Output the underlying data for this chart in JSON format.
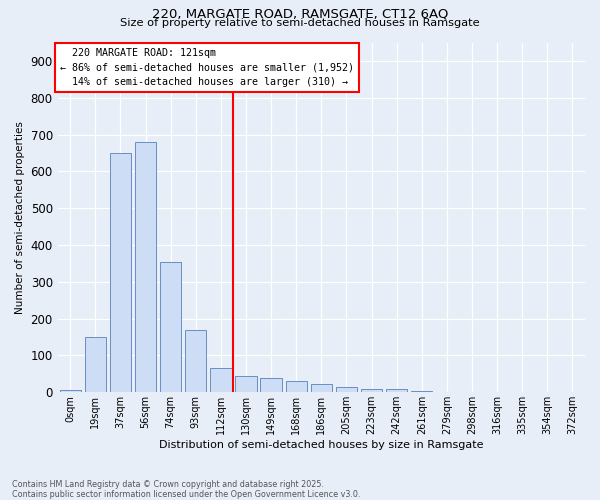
{
  "title1": "220, MARGATE ROAD, RAMSGATE, CT12 6AQ",
  "title2": "Size of property relative to semi-detached houses in Ramsgate",
  "xlabel": "Distribution of semi-detached houses by size in Ramsgate",
  "ylabel": "Number of semi-detached properties",
  "categories": [
    "0sqm",
    "19sqm",
    "37sqm",
    "56sqm",
    "74sqm",
    "93sqm",
    "112sqm",
    "130sqm",
    "149sqm",
    "168sqm",
    "186sqm",
    "205sqm",
    "223sqm",
    "242sqm",
    "261sqm",
    "279sqm",
    "298sqm",
    "316sqm",
    "335sqm",
    "354sqm",
    "372sqm"
  ],
  "values": [
    5,
    150,
    650,
    680,
    355,
    170,
    65,
    45,
    40,
    30,
    22,
    15,
    10,
    8,
    3,
    2,
    1,
    0,
    0,
    0,
    0
  ],
  "bar_color": "#ccddf5",
  "bar_edge_color": "#5580bb",
  "vline_x": 6.5,
  "property_label": "220 MARGATE ROAD: 121sqm",
  "pct_smaller": 86,
  "count_smaller": "1,952",
  "pct_larger": 14,
  "count_larger": "310",
  "ylim": [
    0,
    950
  ],
  "yticks": [
    0,
    100,
    200,
    300,
    400,
    500,
    600,
    700,
    800,
    900
  ],
  "bg_color": "#e8eef8",
  "grid_color": "#ffffff",
  "footnote1": "Contains HM Land Registry data © Crown copyright and database right 2025.",
  "footnote2": "Contains public sector information licensed under the Open Government Licence v3.0."
}
